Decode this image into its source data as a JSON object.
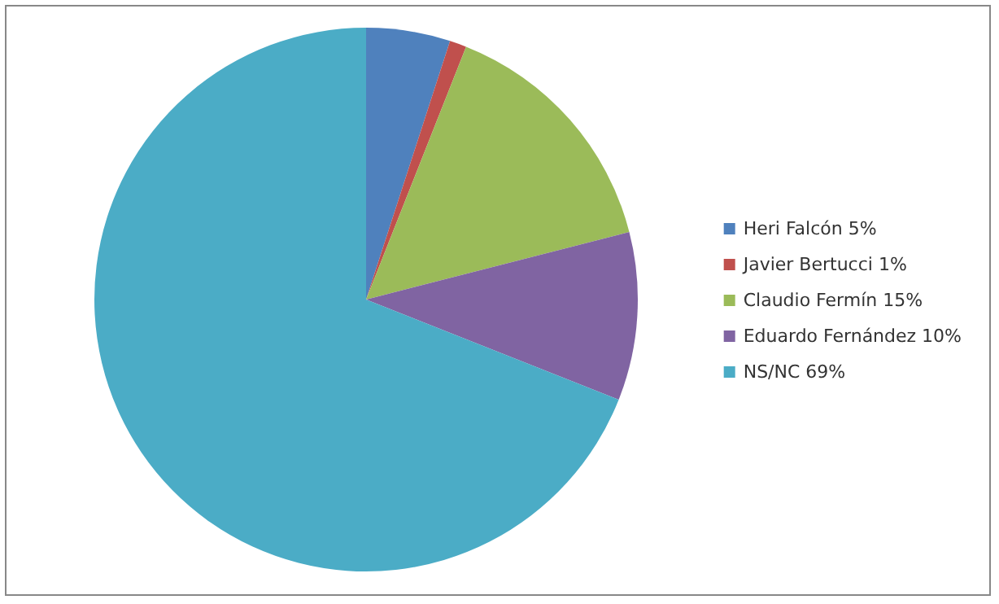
{
  "chart_data": {
    "type": "pie",
    "categories": [
      "Heri Falcón 5%",
      "Javier Bertucci 1%",
      "Claudio Fermín 15%",
      "Eduardo Fernández 10%",
      "NS/NC 69%"
    ],
    "values": [
      5,
      1,
      15,
      10,
      69
    ],
    "colors": [
      "#4f81bd",
      "#c0504d",
      "#9bbb59",
      "#8064a2",
      "#4bacc6"
    ],
    "legend": "right"
  }
}
